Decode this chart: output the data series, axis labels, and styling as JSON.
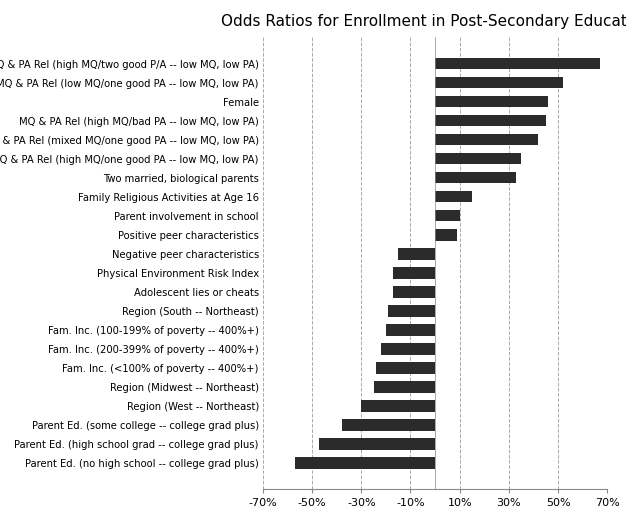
{
  "title": "Odds Ratios for Enrollment in Post-Secondary Education",
  "categories": [
    "MQ & PA Rel (high MQ/two good P/A -- low MQ, low PA)",
    "MQ & PA Rel (low MQ/one good PA -- low MQ, low PA)",
    "Female",
    "MQ & PA Rel (high MQ/bad PA -- low MQ, low PA)",
    "MQ & PA Rel (mixed MQ/one good PA -- low MQ, low PA)",
    "MQ & PA Rel (high MQ/one good PA -- low MQ, low PA)",
    "Two married, biological parents",
    "Family Religious Activities at Age 16",
    "Parent involvement in school",
    "Positive peer characteristics",
    "Negative peer characteristics",
    "Physical Environment Risk Index",
    "Adolescent lies or cheats",
    "Region (South -- Northeast)",
    "Fam. Inc. (100-199% of poverty -- 400%+)",
    "Fam. Inc. (200-399% of poverty -- 400%+)",
    "Fam. Inc. (<100% of poverty -- 400%+)",
    "Region (Midwest -- Northeast)",
    "Region (West -- Northeast)",
    "Parent Ed. (some college -- college grad plus)",
    "Parent Ed. (high school grad -- college grad plus)",
    "Parent Ed. (no high school -- college grad plus)"
  ],
  "values": [
    67,
    52,
    46,
    45,
    42,
    35,
    33,
    15,
    10,
    9,
    -15,
    -17,
    -17,
    -19,
    -20,
    -22,
    -24,
    -25,
    -30,
    -38,
    -47,
    -57
  ],
  "bar_color": "#2b2b2b",
  "xlim": [
    -70,
    70
  ],
  "xticks": [
    -70,
    -50,
    -30,
    -10,
    10,
    30,
    50,
    70
  ],
  "xticklabels": [
    "-70%",
    "-50%",
    "-30%",
    "-10%",
    "10%",
    "30%",
    "50%",
    "70%"
  ],
  "grid_color": "#aaaaaa",
  "background_color": "#ffffff",
  "title_fontsize": 11,
  "label_fontsize": 7.2,
  "tick_fontsize": 8
}
